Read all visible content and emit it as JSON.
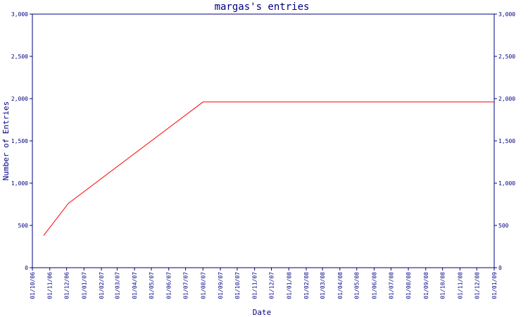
{
  "colors": {
    "axis": "#000080",
    "line": "#ff0000",
    "background": "#ffffff"
  },
  "chart_data": {
    "type": "line",
    "title": "margas's entries",
    "xlabel": "Date",
    "ylabel": "Number of Entries",
    "ylim": [
      0,
      3000
    ],
    "y_ticks": [
      0,
      500,
      1000,
      1500,
      2000,
      2500,
      3000
    ],
    "y_tick_labels": [
      "0",
      "500",
      "1,000",
      "1,500",
      "2,000",
      "2,500",
      "3,000"
    ],
    "x_tick_labels": [
      "01/10/06",
      "01/11/06",
      "01/12/06",
      "01/01/07",
      "01/02/07",
      "01/03/07",
      "01/04/07",
      "01/05/07",
      "01/06/07",
      "01/07/07",
      "01/08/07",
      "01/09/07",
      "01/10/07",
      "01/11/07",
      "01/12/07",
      "01/01/08",
      "01/02/08",
      "01/03/08",
      "01/04/08",
      "01/05/08",
      "01/06/08",
      "01/07/08",
      "01/08/08",
      "01/09/08",
      "01/10/08",
      "01/11/08",
      "01/12/08",
      "01/01/09"
    ],
    "grid": false,
    "series": [
      {
        "x": [
          "2006-10-21",
          "2006-12-04",
          "2007-08-01",
          "2008-12-31"
        ],
        "y": [
          380,
          760,
          1960,
          1960
        ]
      }
    ]
  }
}
